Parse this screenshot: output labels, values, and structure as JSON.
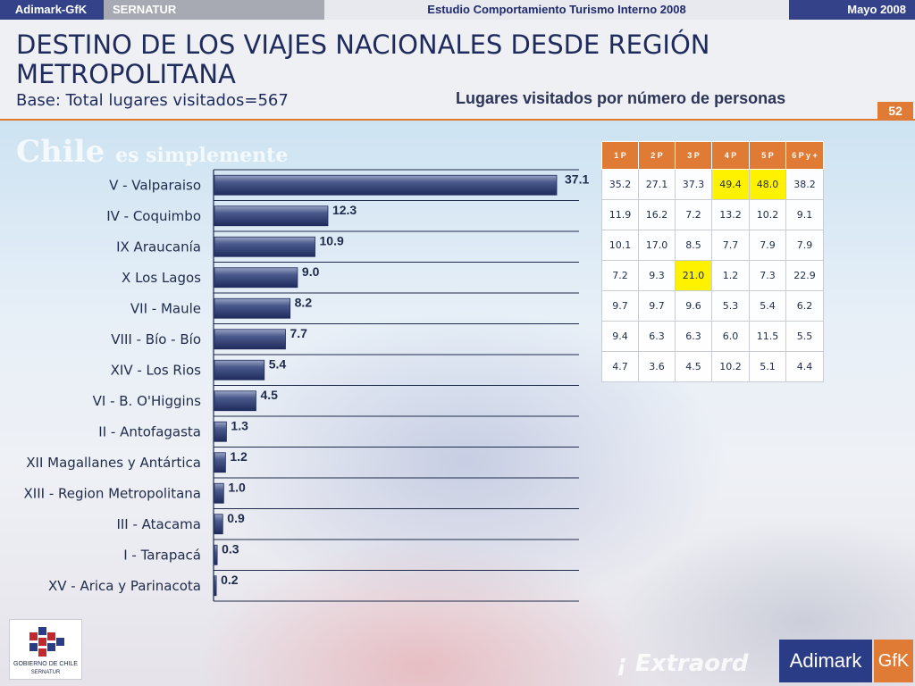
{
  "topbar": {
    "left": "Adimark-GfK",
    "client": "SERNATUR",
    "study": "Estudio Comportamiento Turismo Interno 2008",
    "date": "Mayo 2008"
  },
  "header": {
    "title": "DESTINO DE LOS VIAJES NACIONALES DESDE REGIÓN METROPOLITANA",
    "base": "Base: Total lugares visitados=567",
    "subtitle": "Lugares visitados por número de personas",
    "page_number": "52"
  },
  "background": {
    "watermark_main": "Chile",
    "watermark_tail": "es simplemente",
    "watermark_bottom": "¡ Extraord"
  },
  "colors": {
    "bar": "#3a4a7c",
    "accent": "#e07b36",
    "brand": "#2b3c87",
    "highlight": "#fff200"
  },
  "chart_data": {
    "type": "bar",
    "orientation": "horizontal",
    "categories": [
      "V - Valparaiso",
      "IV - Coquimbo",
      "IX Araucanía",
      "X Los Lagos",
      "VII - Maule",
      "VIII - Bío - Bío",
      "XIV - Los Rios",
      "VI - B. O'Higgins",
      "II - Antofagasta",
      "XII Magallanes y Antártica",
      "XIII - Region Metropolitana",
      "III - Atacama",
      "I - Tarapacá",
      "XV - Arica y Parinacota"
    ],
    "values": [
      37.1,
      12.3,
      10.9,
      9.0,
      8.2,
      7.7,
      5.4,
      4.5,
      1.3,
      1.2,
      1.0,
      0.9,
      0.3,
      0.2
    ],
    "value_labels": [
      "37.1",
      "12.3",
      "10.9",
      "9.0",
      "8.2",
      "7.7",
      "5.4",
      "4.5",
      "1.3",
      "1.2",
      "1.0",
      "0.9",
      "0.3",
      "0.2"
    ],
    "xlim": [
      0,
      40
    ],
    "grid": "horizontal separators",
    "legend": "none"
  },
  "table": {
    "headers": [
      "1 P",
      "2 P",
      "3 P",
      "4 P",
      "5 P",
      "6 P y +"
    ],
    "rows": [
      [
        "35.2",
        "27.1",
        "37.3",
        "49.4",
        "48.0",
        "38.2"
      ],
      [
        "11.9",
        "16.2",
        "7.2",
        "13.2",
        "10.2",
        "9.1"
      ],
      [
        "10.1",
        "17.0",
        "8.5",
        "7.7",
        "7.9",
        "7.9"
      ],
      [
        "7.2",
        "9.3",
        "21.0",
        "1.2",
        "7.3",
        "22.9"
      ],
      [
        "9.7",
        "9.7",
        "9.6",
        "5.3",
        "5.4",
        "6.2"
      ],
      [
        "9.4",
        "6.3",
        "6.3",
        "6.0",
        "11.5",
        "5.5"
      ],
      [
        "4.7",
        "3.6",
        "4.5",
        "10.2",
        "5.1",
        "4.4"
      ]
    ],
    "highlighted": [
      [
        0,
        3
      ],
      [
        0,
        4
      ],
      [
        3,
        2
      ]
    ]
  },
  "logos": {
    "gobierno_line1": "GOBIERNO DE CHILE",
    "gobierno_line2": "SERNATUR",
    "adimark": "Adimark",
    "gfk": "GfK"
  }
}
